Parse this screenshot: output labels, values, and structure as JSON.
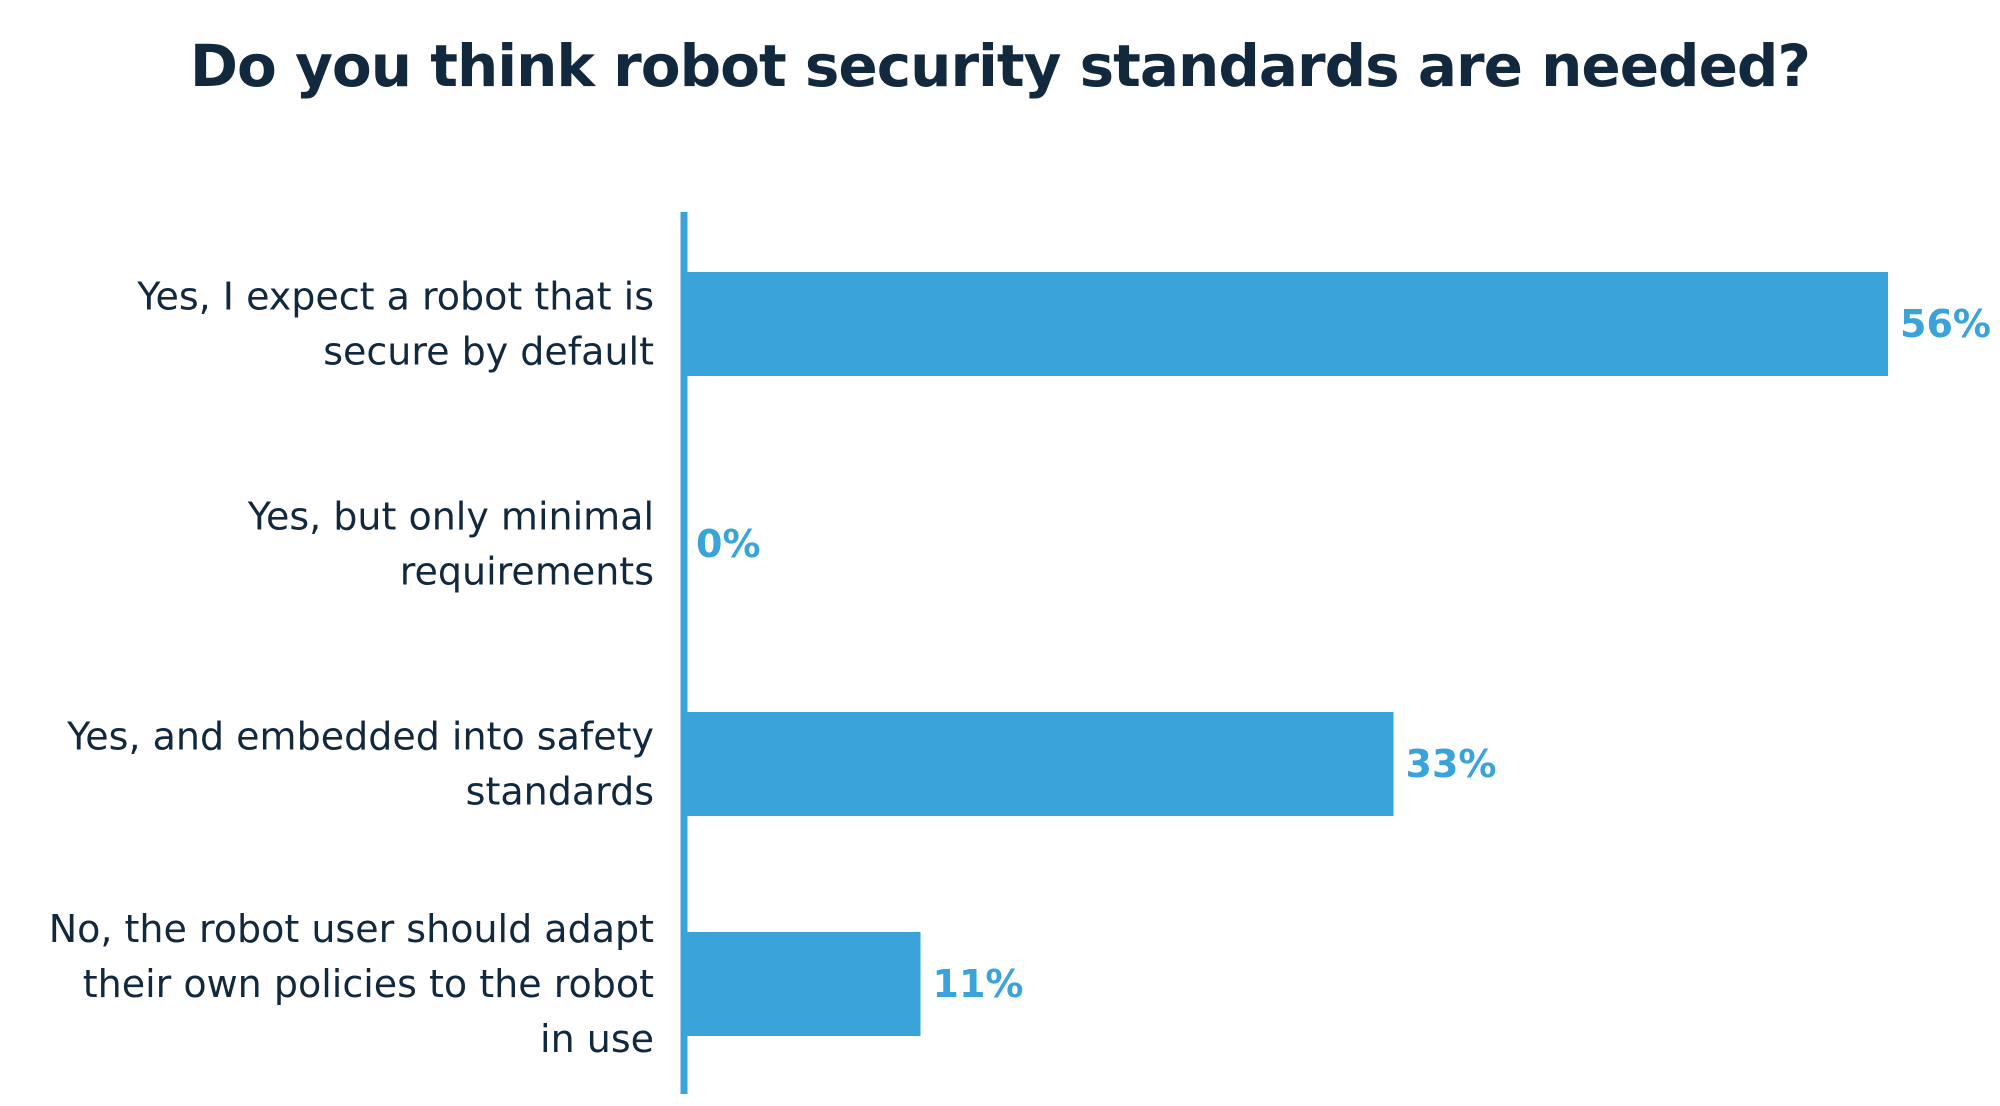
{
  "chart_data": {
    "type": "bar",
    "orientation": "horizontal",
    "title": "Do you think robot security standards are needed?",
    "categories": [
      [
        "Yes, I expect a robot that is",
        "secure by default"
      ],
      [
        "Yes, but only minimal",
        "requirements"
      ],
      [
        "Yes, and embedded into safety",
        "standards"
      ],
      [
        "No, the robot user should adapt",
        "their own policies to the robot",
        "in use"
      ]
    ],
    "values": [
      56,
      0,
      33,
      11
    ],
    "value_labels": [
      "56%",
      "0%",
      "33%",
      "11%"
    ],
    "xlim": [
      0,
      56
    ],
    "grid": false,
    "legend": "none"
  },
  "colors": {
    "bar": "#3aa3d9",
    "axis": "#3aa3d9",
    "value_text": "#3aa3d9",
    "title_text": "#12283d",
    "label_text": "#12283d",
    "background": "#ffffff"
  }
}
